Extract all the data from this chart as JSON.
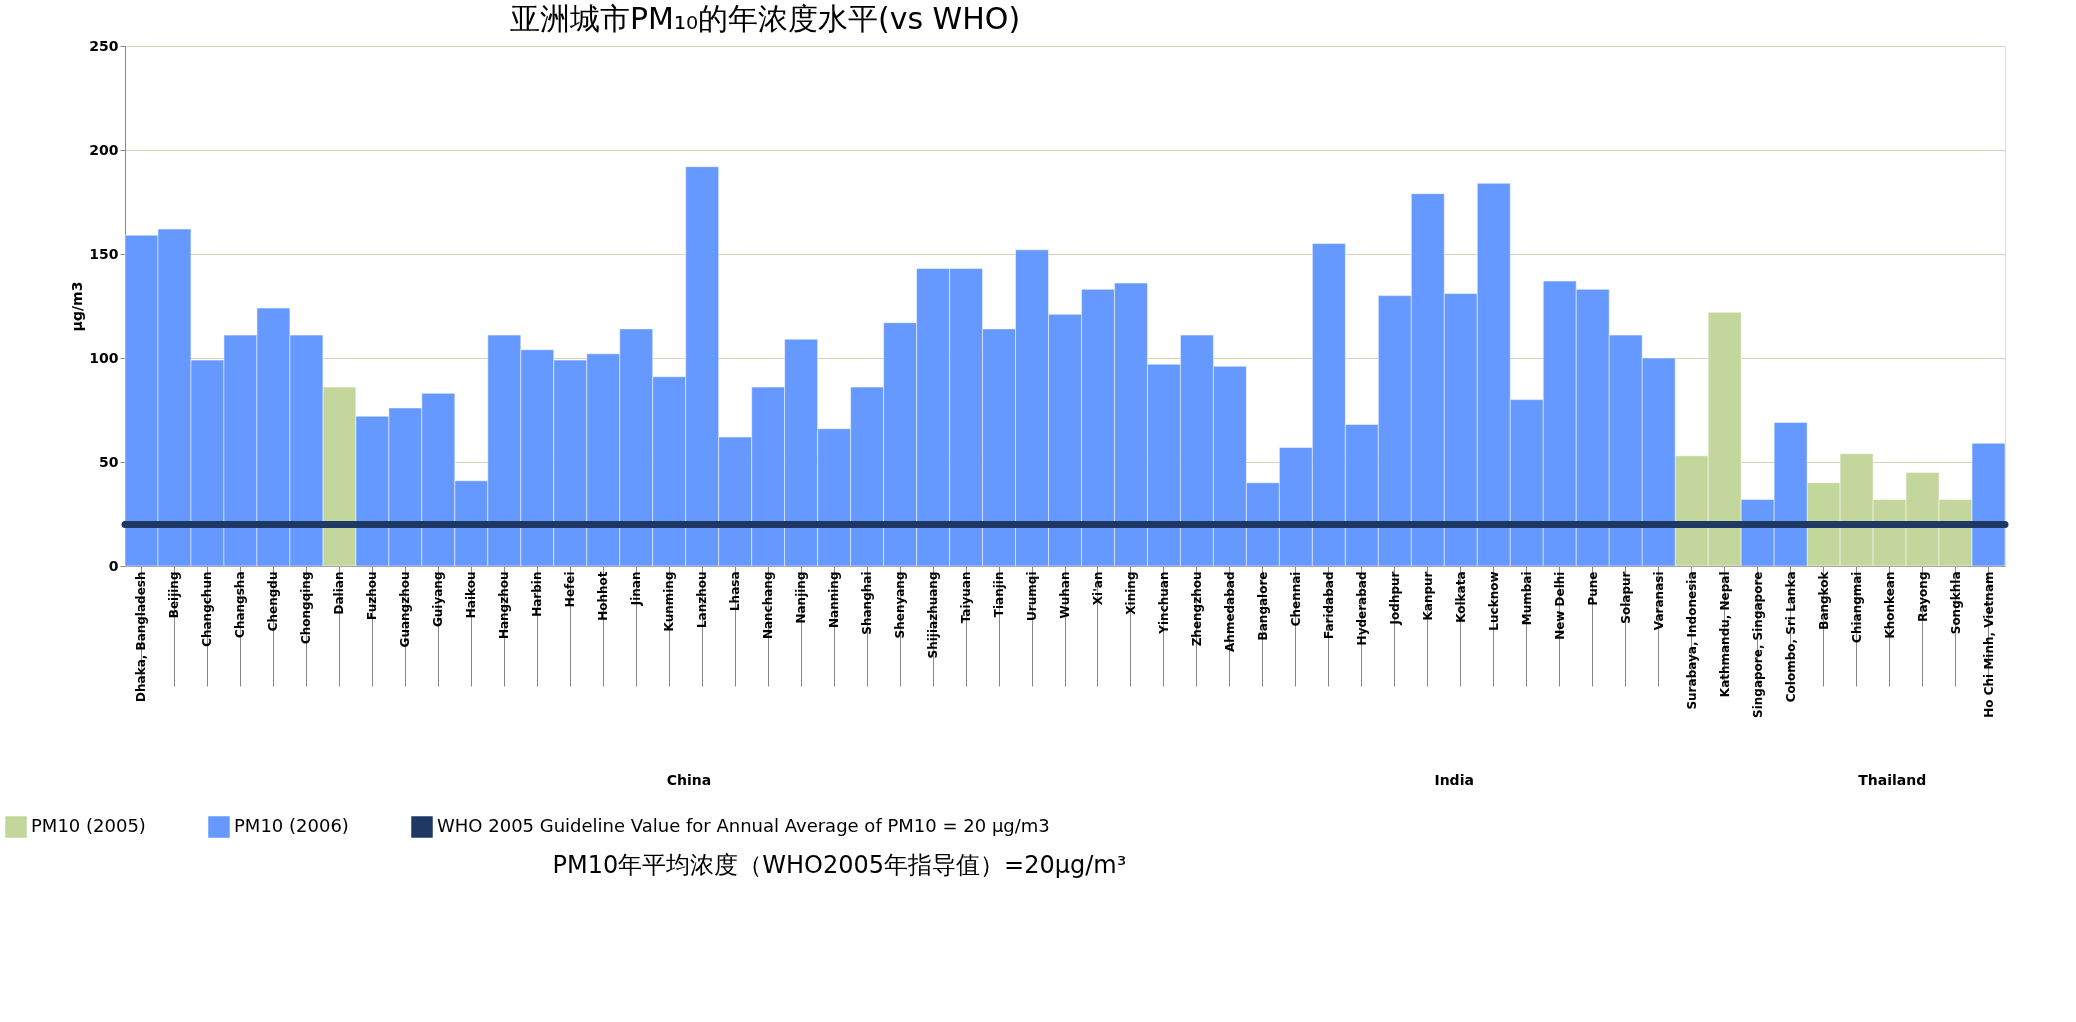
{
  "chart_data": {
    "type": "bar",
    "title": "亚洲城市PM₁₀的年浓度水平(vs WHO)",
    "ylabel": "µg/m3",
    "categories": [
      "Dhaka, Bangladesh",
      "Beijing",
      "Changchun",
      "Changsha",
      "Chengdu",
      "Chongqing",
      "Dalian",
      "Fuzhou",
      "Guangzhou",
      "Guiyang",
      "Haikou",
      "Hangzhou",
      "Harbin",
      "Hefei",
      "Hohhot",
      "Jinan",
      "Kunming",
      "Lanzhou",
      "Lhasa",
      "Nanchang",
      "Nanjing",
      "Nanning",
      "Shanghai",
      "Shenyang",
      "Shijiazhuang",
      "Taiyuan",
      "Tianjin",
      "Urumqi",
      "Wuhan",
      "Xi'an",
      "Xining",
      "Yinchuan",
      "Zhengzhou",
      "Ahmedabad",
      "Bangalore",
      "Chennai",
      "Faridabad",
      "Hyderabad",
      "Jodhpur",
      "Kanpur",
      "Kolkata",
      "Lucknow",
      "Mumbai",
      "New Delhi",
      "Pune",
      "Solapur",
      "Varanasi",
      "Surabaya, Indonesia",
      "Kathmandu, Nepal",
      "Singapore, Singapore",
      "Colombo, Sri Lanka",
      "Bangkok",
      "Chiangmai",
      "Khonkean",
      "Rayong",
      "Songkhla",
      "Ho Chi Minh, Vietnam"
    ],
    "series": [
      {
        "name": "PM10 (2005)",
        "color": "#c3d69b",
        "values": [
          null,
          null,
          null,
          null,
          null,
          null,
          86,
          null,
          null,
          null,
          null,
          null,
          null,
          null,
          null,
          null,
          null,
          null,
          null,
          null,
          null,
          null,
          null,
          null,
          null,
          null,
          null,
          null,
          null,
          null,
          null,
          null,
          null,
          null,
          null,
          null,
          null,
          null,
          null,
          null,
          null,
          null,
          null,
          null,
          null,
          null,
          null,
          53,
          122,
          null,
          null,
          40,
          54,
          32,
          45,
          32,
          null
        ]
      },
      {
        "name": "PM10 (2006)",
        "color": "#6699ff",
        "values": [
          159,
          162,
          99,
          111,
          124,
          111,
          null,
          72,
          76,
          83,
          41,
          111,
          104,
          99,
          102,
          114,
          91,
          192,
          62,
          86,
          109,
          66,
          86,
          117,
          143,
          143,
          114,
          152,
          121,
          133,
          136,
          97,
          111,
          96,
          40,
          57,
          155,
          68,
          130,
          179,
          131,
          184,
          80,
          137,
          133,
          111,
          100,
          null,
          null,
          32,
          69,
          null,
          null,
          null,
          null,
          null,
          59
        ]
      }
    ],
    "ylim": [
      0,
      250
    ],
    "yticks": [
      0,
      50,
      100,
      150,
      200,
      250
    ],
    "grid": "y",
    "legend": "bottom",
    "ref_lines": [
      {
        "axis": "y",
        "value": 20,
        "label": "WHO 2005 Guideline Value for Annual Average of PM10 = 20 µg/m3",
        "color": "#1f3864"
      }
    ],
    "annotations": [
      "China",
      "India",
      "Thailand",
      "PM10年平均浓度（WHO2005年指导值）=20µg/m³"
    ]
  }
}
